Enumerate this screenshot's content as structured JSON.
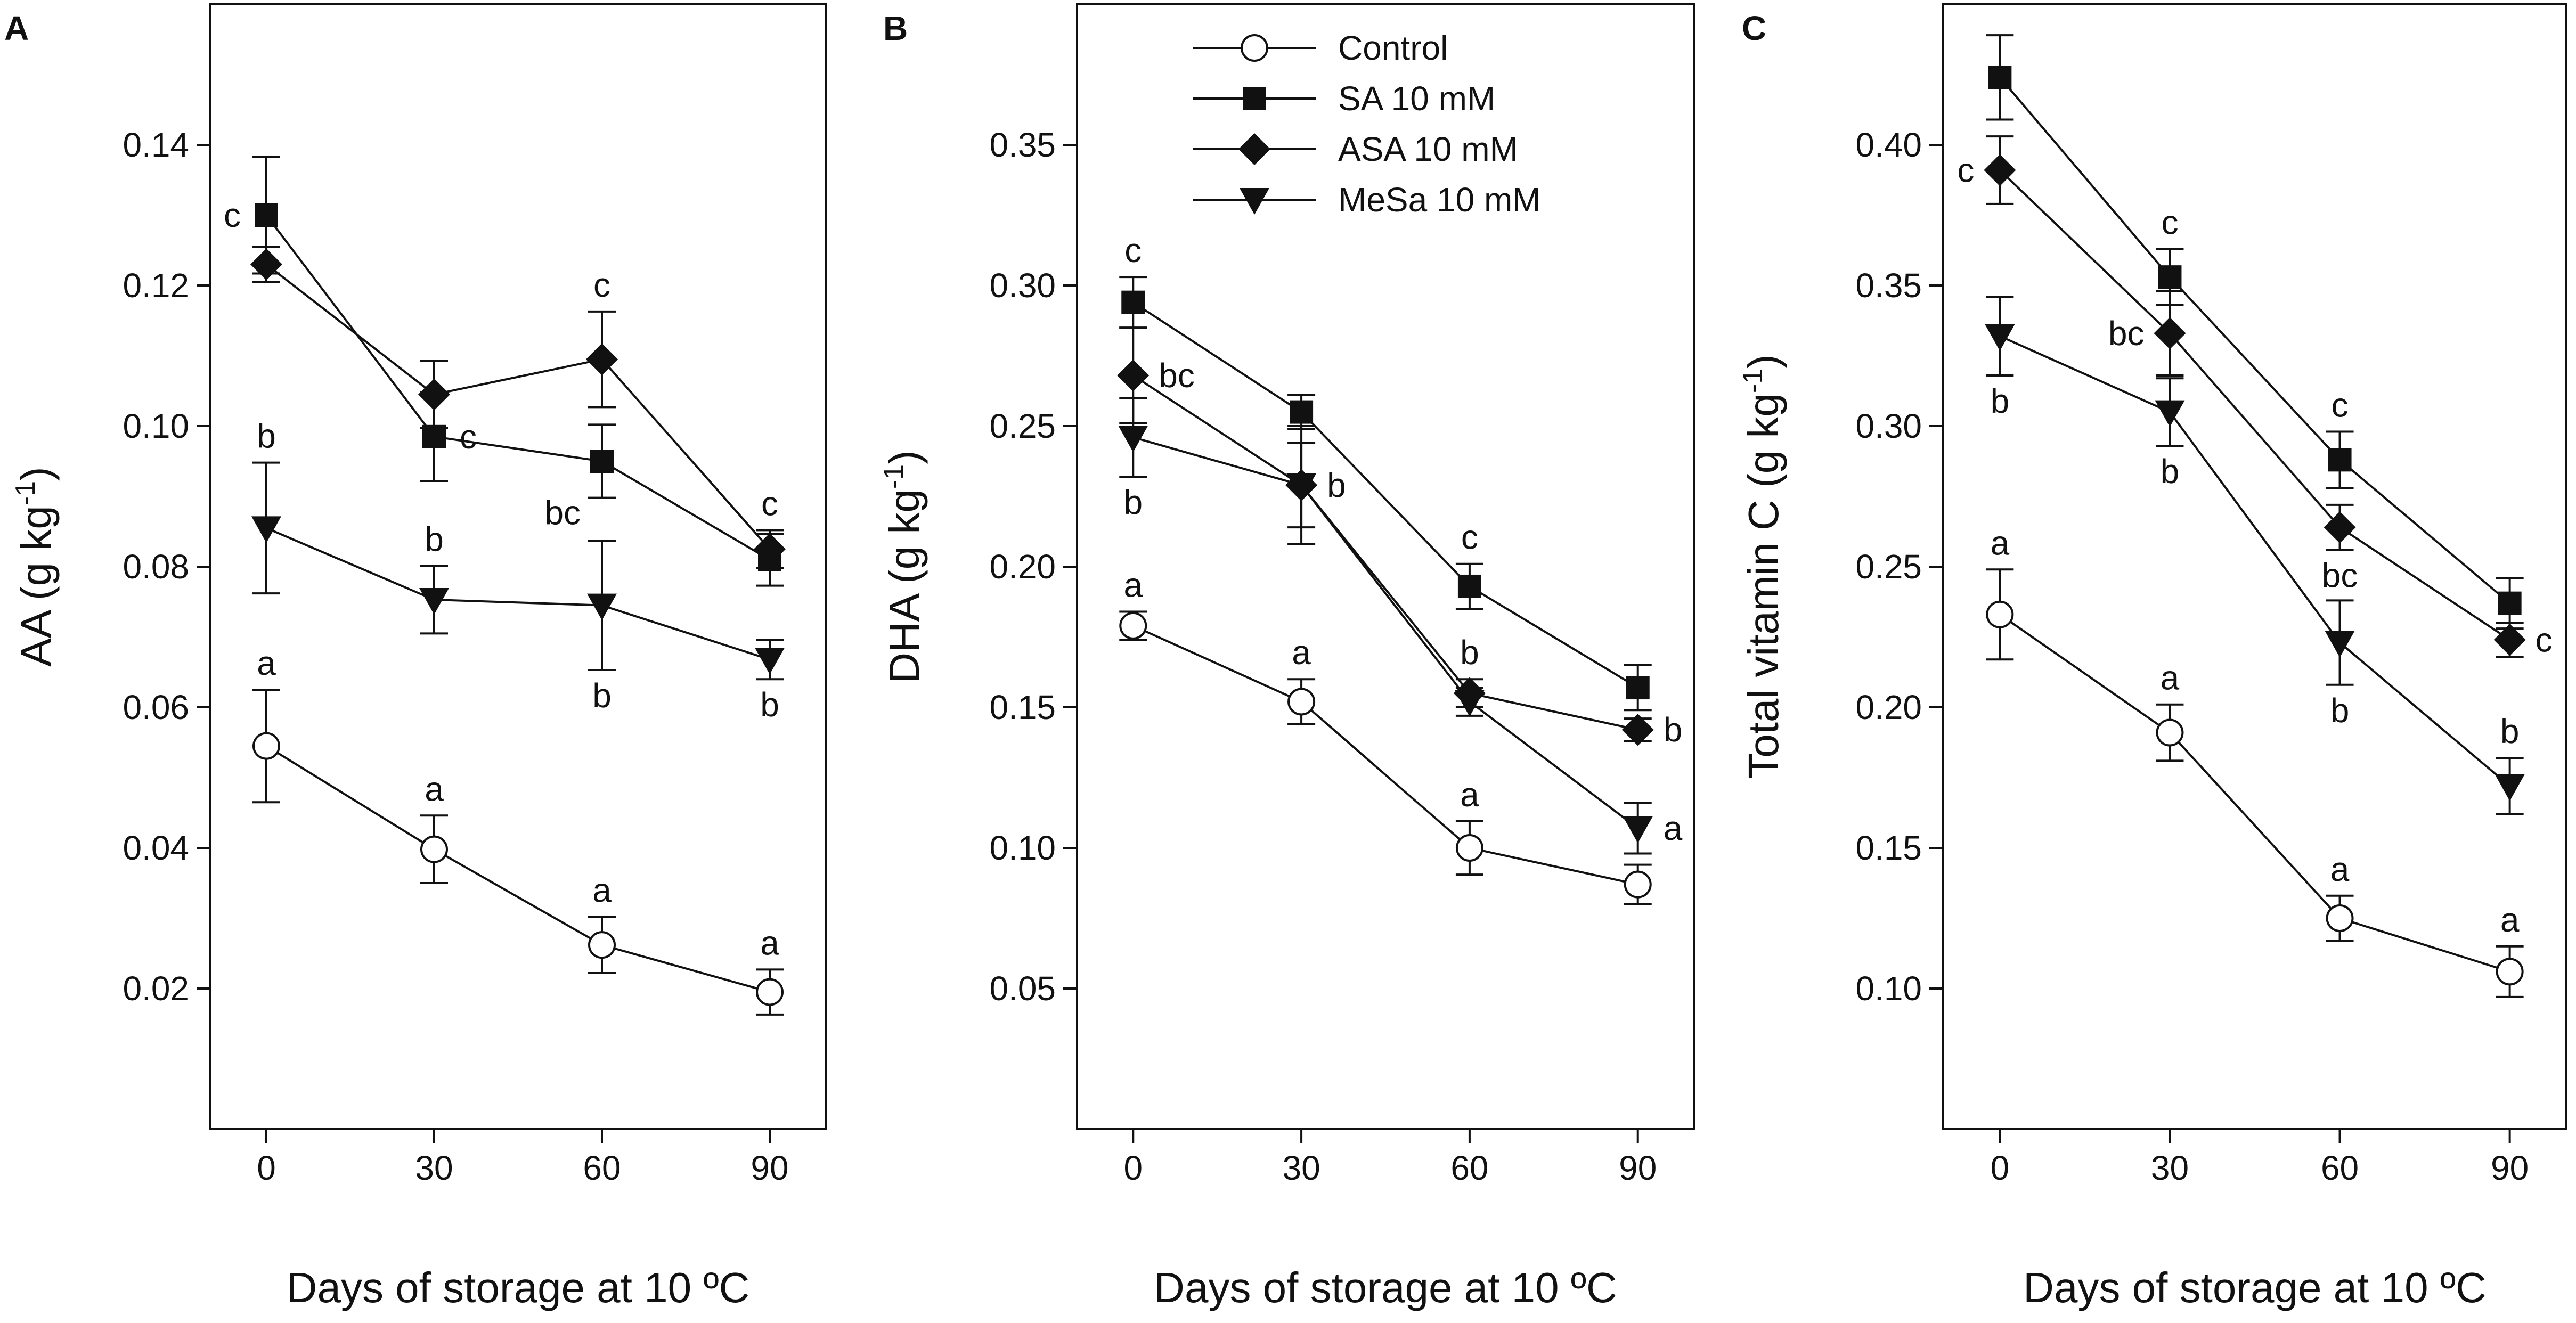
{
  "chart_data": [
    {
      "type": "line",
      "panel_label": "A",
      "xlabel": "Days of storage at 10 ºC",
      "ylabel_main": "AA (g kg",
      "ylabel_sup": "-1",
      "ylabel_close": ")",
      "x": [
        0,
        30,
        60,
        90
      ],
      "x_tick_labels": [
        "0",
        "30",
        "60",
        "90"
      ],
      "xlim": [
        -10,
        100
      ],
      "ylim": [
        0,
        0.16
      ],
      "y_ticks": [
        0.02,
        0.04,
        0.06,
        0.08,
        0.1,
        0.12,
        0.14
      ],
      "y_tick_labels": [
        "0.02",
        "0.04",
        "0.06",
        "0.08",
        "0.10",
        "0.12",
        "0.14"
      ],
      "series": [
        {
          "name": "Control",
          "marker": "circle-open",
          "values": [
            0.0545,
            0.0398,
            0.0262,
            0.0195
          ],
          "errors": [
            0.008,
            0.0048,
            0.004,
            0.0032
          ]
        },
        {
          "name": "SA 10 mM",
          "marker": "square",
          "values": [
            0.13,
            0.0985,
            0.095,
            0.081
          ],
          "errors": [
            0.0083,
            0.0063,
            0.0052,
            0.0037
          ]
        },
        {
          "name": "ASA 10 mM",
          "marker": "diamond",
          "values": [
            0.123,
            0.1045,
            0.1095,
            0.0825
          ],
          "errors": [
            0.0025,
            0.0048,
            0.0068,
            0.0027
          ]
        },
        {
          "name": "MeSa 10 mM",
          "marker": "triangle-down",
          "values": [
            0.0855,
            0.0753,
            0.0745,
            0.0668
          ],
          "errors": [
            0.0093,
            0.0048,
            0.0092,
            0.0028
          ]
        }
      ],
      "annotations": [
        {
          "text": "c",
          "x": 0,
          "series": "SA 10 mM",
          "pos": "left"
        },
        {
          "text": "c",
          "x": 30,
          "series": "SA 10 mM",
          "pos": "right"
        },
        {
          "text": "c",
          "x": 60,
          "series": "ASA 10 mM",
          "pos": "above"
        },
        {
          "text": "c",
          "x": 90,
          "series": "ASA 10 mM",
          "pos": "above"
        },
        {
          "text": "b",
          "x": 0,
          "series": "MeSa 10 mM",
          "pos": "above"
        },
        {
          "text": "b",
          "x": 30,
          "series": "MeSa 10 mM",
          "pos": "above"
        },
        {
          "text": "bc",
          "x": 60,
          "series": "SA 10 mM",
          "pos": "below-left"
        },
        {
          "text": "b",
          "x": 60,
          "series": "MeSa 10 mM",
          "pos": "below"
        },
        {
          "text": "b",
          "x": 90,
          "series": "MeSa 10 mM",
          "pos": "below"
        },
        {
          "text": "a",
          "x": 0,
          "series": "Control",
          "pos": "above"
        },
        {
          "text": "a",
          "x": 30,
          "series": "Control",
          "pos": "above"
        },
        {
          "text": "a",
          "x": 60,
          "series": "Control",
          "pos": "above"
        },
        {
          "text": "a",
          "x": 90,
          "series": "Control",
          "pos": "above"
        }
      ]
    },
    {
      "type": "line",
      "panel_label": "B",
      "xlabel": "Days of storage at 10 ºC",
      "ylabel_main": "DHA (g kg",
      "ylabel_sup": "-1",
      "ylabel_close": ")",
      "x": [
        0,
        30,
        60,
        90
      ],
      "x_tick_labels": [
        "0",
        "30",
        "60",
        "90"
      ],
      "xlim": [
        -10,
        100
      ],
      "ylim": [
        0,
        0.4
      ],
      "y_ticks": [
        0.05,
        0.1,
        0.15,
        0.2,
        0.25,
        0.3,
        0.35
      ],
      "y_tick_labels": [
        "0.05",
        "0.10",
        "0.15",
        "0.20",
        "0.25",
        "0.30",
        "0.35"
      ],
      "legend": {
        "placement": "top-center",
        "entries": [
          "Control",
          "SA 10 mM",
          "ASA 10 mM",
          "MeSa 10 mM"
        ]
      },
      "series": [
        {
          "name": "Control",
          "marker": "circle-open",
          "values": [
            0.179,
            0.152,
            0.1,
            0.087
          ],
          "errors": [
            0.005,
            0.008,
            0.0095,
            0.007
          ]
        },
        {
          "name": "SA 10 mM",
          "marker": "square",
          "values": [
            0.294,
            0.255,
            0.193,
            0.157
          ],
          "errors": [
            0.009,
            0.006,
            0.008,
            0.008
          ]
        },
        {
          "name": "ASA 10 mM",
          "marker": "diamond",
          "values": [
            0.268,
            0.229,
            0.155,
            0.142
          ],
          "errors": [
            0.017,
            0.021,
            0.005,
            0.004
          ]
        },
        {
          "name": "MeSa 10 mM",
          "marker": "triangle-down",
          "values": [
            0.246,
            0.229,
            0.152,
            0.107
          ],
          "errors": [
            0.014,
            0.015,
            0.005,
            0.009
          ]
        }
      ],
      "annotations": [
        {
          "text": "c",
          "x": 0,
          "series": "SA 10 mM",
          "pos": "above"
        },
        {
          "text": "bc",
          "x": 0,
          "series": "ASA 10 mM",
          "pos": "right"
        },
        {
          "text": "b",
          "x": 0,
          "series": "MeSa 10 mM",
          "pos": "below"
        },
        {
          "text": "b",
          "x": 30,
          "series": "ASA 10 mM",
          "pos": "right"
        },
        {
          "text": "c",
          "x": 60,
          "series": "SA 10 mM",
          "pos": "above"
        },
        {
          "text": "b",
          "x": 60,
          "series": "ASA 10 mM",
          "pos": "above"
        },
        {
          "text": "b",
          "x": 90,
          "series": "ASA 10 mM",
          "pos": "right"
        },
        {
          "text": "a",
          "x": 90,
          "series": "MeSa 10 mM",
          "pos": "right"
        },
        {
          "text": "a",
          "x": 0,
          "series": "Control",
          "pos": "above"
        },
        {
          "text": "a",
          "x": 30,
          "series": "Control",
          "pos": "above"
        },
        {
          "text": "a",
          "x": 60,
          "series": "Control",
          "pos": "above"
        }
      ]
    },
    {
      "type": "line",
      "panel_label": "C",
      "xlabel": "Days of storage at 10 ºC",
      "ylabel_main": "Total vitamin C (g kg",
      "ylabel_sup": "-1",
      "ylabel_close": ")",
      "x": [
        0,
        30,
        60,
        90
      ],
      "x_tick_labels": [
        "0",
        "30",
        "60",
        "90"
      ],
      "xlim": [
        -10,
        100
      ],
      "ylim": [
        0.05,
        0.45
      ],
      "y_ticks": [
        0.1,
        0.15,
        0.2,
        0.25,
        0.3,
        0.35,
        0.4
      ],
      "y_tick_labels": [
        "0.10",
        "0.15",
        "0.20",
        "0.25",
        "0.30",
        "0.35",
        "0.40"
      ],
      "series": [
        {
          "name": "Control",
          "marker": "circle-open",
          "values": [
            0.233,
            0.191,
            0.125,
            0.106
          ],
          "errors": [
            0.016,
            0.01,
            0.008,
            0.009
          ]
        },
        {
          "name": "SA 10 mM",
          "marker": "square",
          "values": [
            0.424,
            0.353,
            0.288,
            0.237
          ],
          "errors": [
            0.015,
            0.01,
            0.01,
            0.009
          ]
        },
        {
          "name": "ASA 10 mM",
          "marker": "diamond",
          "values": [
            0.391,
            0.333,
            0.264,
            0.224
          ],
          "errors": [
            0.012,
            0.015,
            0.008,
            0.006
          ]
        },
        {
          "name": "MeSa 10 mM",
          "marker": "triangle-down",
          "values": [
            0.332,
            0.305,
            0.223,
            0.172
          ],
          "errors": [
            0.014,
            0.012,
            0.015,
            0.01
          ]
        }
      ],
      "annotations": [
        {
          "text": "c",
          "x": 0,
          "series": "ASA 10 mM",
          "pos": "left"
        },
        {
          "text": "b",
          "x": 0,
          "series": "MeSa 10 mM",
          "pos": "below"
        },
        {
          "text": "c",
          "x": 30,
          "series": "SA 10 mM",
          "pos": "above"
        },
        {
          "text": "bc",
          "x": 30,
          "series": "ASA 10 mM",
          "pos": "left"
        },
        {
          "text": "b",
          "x": 30,
          "series": "MeSa 10 mM",
          "pos": "below"
        },
        {
          "text": "c",
          "x": 60,
          "series": "SA 10 mM",
          "pos": "above"
        },
        {
          "text": "bc",
          "x": 60,
          "series": "ASA 10 mM",
          "pos": "below"
        },
        {
          "text": "b",
          "x": 60,
          "series": "MeSa 10 mM",
          "pos": "below"
        },
        {
          "text": "c",
          "x": 90,
          "series": "ASA 10 mM",
          "pos": "right"
        },
        {
          "text": "b",
          "x": 90,
          "series": "MeSa 10 mM",
          "pos": "above"
        },
        {
          "text": "a",
          "x": 0,
          "series": "Control",
          "pos": "above"
        },
        {
          "text": "a",
          "x": 30,
          "series": "Control",
          "pos": "above"
        },
        {
          "text": "a",
          "x": 60,
          "series": "Control",
          "pos": "above"
        },
        {
          "text": "a",
          "x": 90,
          "series": "Control",
          "pos": "above"
        }
      ]
    }
  ]
}
